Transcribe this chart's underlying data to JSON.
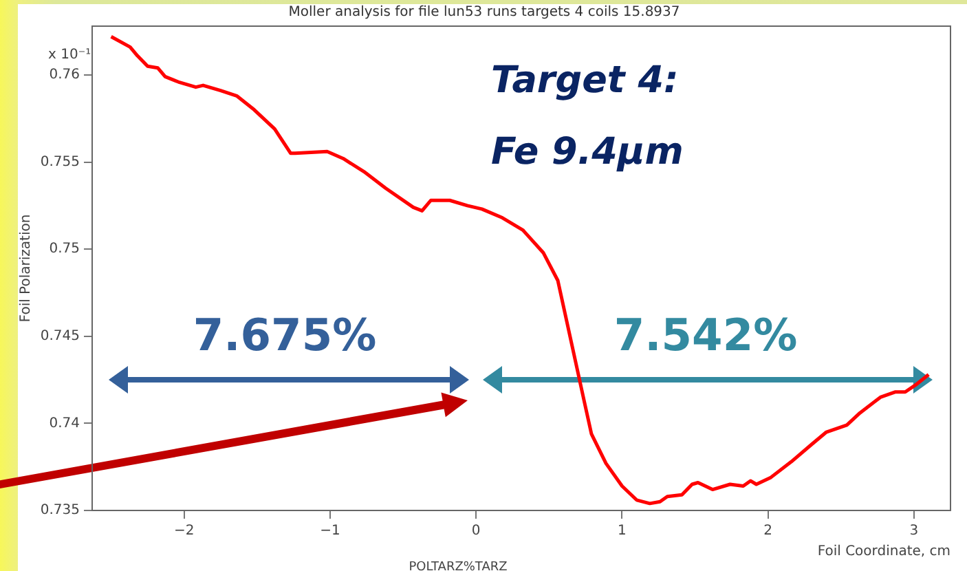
{
  "chart_data": {
    "type": "line",
    "title": "Moller analysis for file lun53 runs targets 4 coils 15.8937",
    "xlabel": "Foil Coordinate, cm",
    "ylabel": "Foil Polarization",
    "annotations": [
      "x 10⁻¹",
      "Target 4:\nFe 9.4µm",
      "7.675%",
      "7.542%",
      "POLTARZ%TARZ"
    ],
    "x": [
      -2.5,
      -2.37,
      -2.32,
      -2.25,
      -2.18,
      -2.13,
      -2.04,
      -1.92,
      -1.87,
      -1.75,
      -1.64,
      -1.52,
      -1.38,
      -1.27,
      -1.24,
      -1.02,
      -0.91,
      -0.76,
      -0.62,
      -0.43,
      -0.37,
      -0.31,
      -0.18,
      -0.06,
      0.04,
      0.18,
      0.32,
      0.46,
      0.56,
      0.62,
      0.68,
      0.74,
      0.79,
      0.89,
      1.0,
      1.1,
      1.19,
      1.26,
      1.31,
      1.41,
      1.48,
      1.52,
      1.62,
      1.74,
      1.83,
      1.88,
      1.92,
      2.02,
      2.16,
      2.3,
      2.4,
      2.54,
      2.63,
      2.77,
      2.87,
      2.94,
      3.01,
      3.1
    ],
    "values": [
      0.7622,
      0.7616,
      0.7611,
      0.7605,
      0.7604,
      0.7599,
      0.7596,
      0.7593,
      0.7594,
      0.7591,
      0.7588,
      0.758,
      0.7569,
      0.7555,
      0.7555,
      0.7556,
      0.7552,
      0.7544,
      0.7535,
      0.7524,
      0.7522,
      0.7528,
      0.7528,
      0.7525,
      0.7523,
      0.7518,
      0.7511,
      0.7498,
      0.7482,
      0.7459,
      0.7436,
      0.7413,
      0.7394,
      0.7377,
      0.7364,
      0.7356,
      0.7354,
      0.7355,
      0.7358,
      0.7359,
      0.7365,
      0.7366,
      0.7362,
      0.7365,
      0.7364,
      0.7367,
      0.7365,
      0.7369,
      0.7378,
      0.7388,
      0.7395,
      0.7399,
      0.7406,
      0.7415,
      0.7418,
      0.7418,
      0.7422,
      0.7428
    ],
    "color": "#ff0000",
    "line_style": "solid",
    "xlim": [
      -2.63,
      3.25
    ],
    "xticks": [
      {
        "value": -2,
        "label": "−2"
      },
      {
        "value": -1,
        "label": "−1"
      },
      0,
      1,
      2,
      3
    ],
    "ylim": [
      0.735,
      0.7628
    ],
    "yticks": [
      0.735,
      0.74,
      0.745,
      0.75,
      0.755,
      0.76
    ]
  }
}
